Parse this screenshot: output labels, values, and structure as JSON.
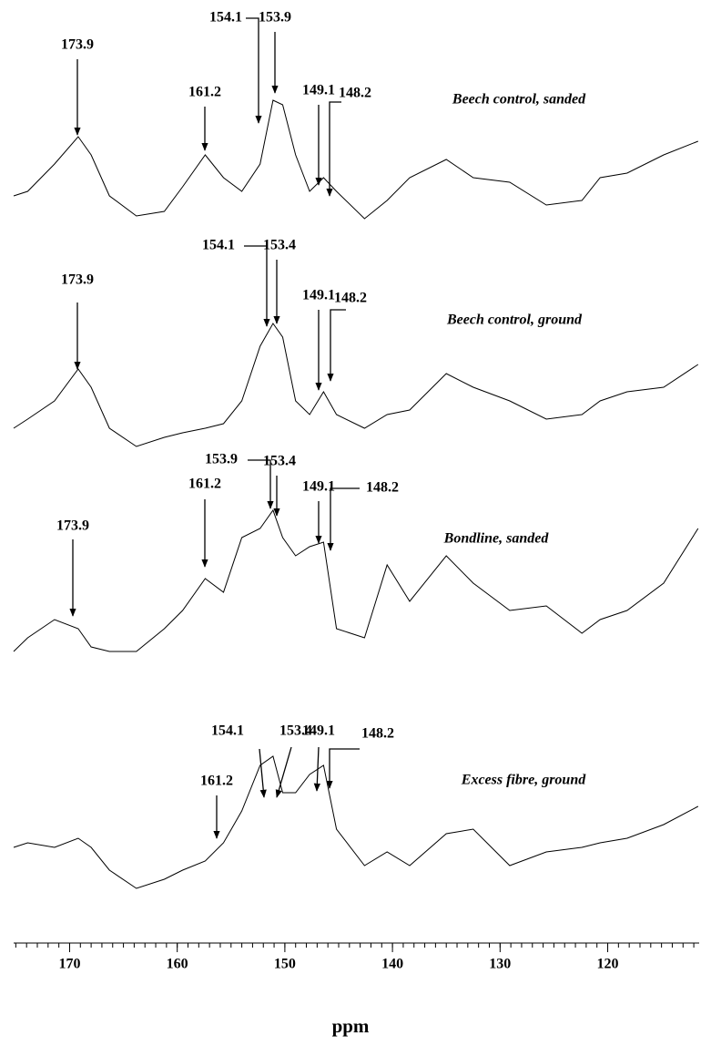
{
  "chart_data": {
    "type": "line",
    "x_label": "ppm",
    "xlim": [
      175.2,
      111.5
    ],
    "xticks": [
      170,
      160,
      150,
      140,
      130,
      120
    ],
    "x": [
      175.2,
      173.9,
      171.4,
      169.2,
      168.0,
      166.3,
      163.8,
      161.2,
      159.5,
      157.4,
      155.7,
      154.0,
      152.3,
      151.1,
      150.2,
      149.0,
      147.7,
      146.4,
      145.2,
      142.6,
      140.5,
      138.4,
      135.0,
      132.5,
      129.1,
      125.7,
      122.4,
      120.7,
      118.2,
      114.8,
      111.6
    ],
    "series": [
      {
        "name": "Beech control, sanded",
        "color": "#000000",
        "peaks": [
          173.9,
          161.2,
          154.1,
          153.9,
          149.1,
          148.2
        ],
        "values": [
          35,
          40,
          70,
          100,
          80,
          35,
          13,
          18,
          45,
          80,
          55,
          40,
          70,
          140,
          135,
          80,
          40,
          55,
          40,
          10,
          30,
          55,
          75,
          55,
          50,
          25,
          30,
          55,
          60,
          80,
          95
        ]
      },
      {
        "name": "Beech control, ground",
        "color": "#000000",
        "peaks": [
          173.9,
          154.1,
          153.4,
          149.1,
          148.2
        ],
        "values": [
          30,
          40,
          60,
          95,
          75,
          30,
          10,
          20,
          25,
          30,
          35,
          60,
          120,
          145,
          130,
          60,
          45,
          70,
          45,
          30,
          45,
          50,
          90,
          75,
          60,
          40,
          45,
          60,
          70,
          75,
          100
        ]
      },
      {
        "name": "Bondline, sanded",
        "color": "#000000",
        "peaks": [
          173.9,
          161.2,
          153.9,
          153.4,
          149.1,
          148.2
        ],
        "values": [
          35,
          50,
          70,
          60,
          40,
          35,
          35,
          60,
          80,
          115,
          100,
          160,
          170,
          190,
          160,
          140,
          150,
          155,
          60,
          50,
          130,
          90,
          140,
          110,
          80,
          85,
          55,
          70,
          80,
          110,
          170
        ]
      },
      {
        "name": "Excess fibre, ground",
        "color": "#000000",
        "peaks": [
          154.1,
          153.4,
          149.1,
          148.2,
          161.2
        ],
        "values": [
          80,
          85,
          80,
          90,
          80,
          55,
          35,
          45,
          55,
          65,
          85,
          120,
          170,
          180,
          140,
          140,
          160,
          170,
          100,
          60,
          75,
          60,
          95,
          100,
          60,
          75,
          80,
          85,
          90,
          105,
          125
        ]
      }
    ]
  }
}
